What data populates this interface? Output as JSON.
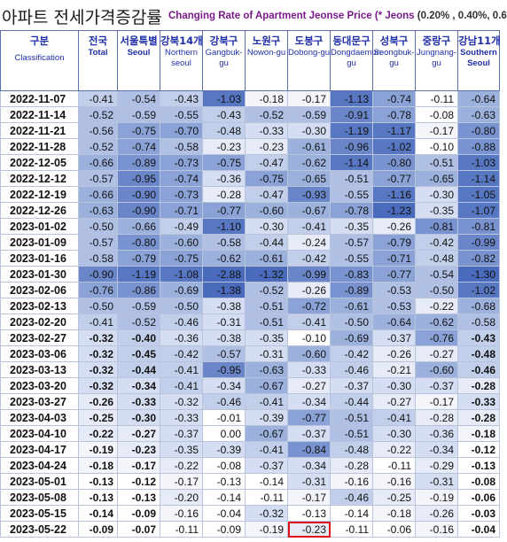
{
  "title": {
    "korean": "아파트 전세가격증감률",
    "english": "Changing Rate of Apartment Jeonse Price",
    "note_prefix": "(* Jeons",
    "note_values": "(0.20% , 0.40%, 0.6"
  },
  "columns": [
    {
      "ko": "구분",
      "en": "Classification"
    },
    {
      "ko": "전국",
      "en": "Total"
    },
    {
      "ko": "서울특별",
      "en": "Seoul"
    },
    {
      "ko": "강북14개",
      "en": "Northern seoul"
    },
    {
      "ko": "강북구",
      "en": "Gangbuk-gu"
    },
    {
      "ko": "노원구",
      "en": "Nowon-gu"
    },
    {
      "ko": "도봉구",
      "en": "Dobong-gu"
    },
    {
      "ko": "동대문구",
      "en": "Dongdaemun-gu"
    },
    {
      "ko": "성북구",
      "en": "Seongbuk-gu"
    },
    {
      "ko": "중랑구",
      "en": "Jungnang-gu"
    },
    {
      "ko": "강남11개",
      "en": "Southern Seoul"
    }
  ],
  "colors": {
    "header_text": "#1f2fa8",
    "title_english": "#7a1a8a",
    "highlight_box": "#e0101a"
  },
  "rows": [
    {
      "date": "2022-11-07",
      "values": [
        "-0.41",
        "-0.54",
        "-0.43",
        "-1.03",
        "-0.18",
        "-0.17",
        "-1.13",
        "-0.74",
        "-0.11",
        "-0.64"
      ]
    },
    {
      "date": "2022-11-14",
      "values": [
        "-0.52",
        "-0.59",
        "-0.55",
        "-0.43",
        "-0.52",
        "-0.59",
        "-0.91",
        "-0.78",
        "-0.08",
        "-0.63"
      ]
    },
    {
      "date": "2022-11-21",
      "values": [
        "-0.56",
        "-0.75",
        "-0.70",
        "-0.48",
        "-0.33",
        "-0.30",
        "-1.19",
        "-1.17",
        "-0.17",
        "-0.80"
      ]
    },
    {
      "date": "2022-11-28",
      "values": [
        "-0.52",
        "-0.74",
        "-0.58",
        "-0.23",
        "-0.23",
        "-0.61",
        "-0.96",
        "-1.02",
        "-0.10",
        "-0.88"
      ]
    },
    {
      "date": "2022-12-05",
      "values": [
        "-0.66",
        "-0.89",
        "-0.73",
        "-0.75",
        "-0.47",
        "-0.62",
        "-1.14",
        "-0.80",
        "-0.51",
        "-1.03"
      ]
    },
    {
      "date": "2022-12-12",
      "values": [
        "-0.57",
        "-0.95",
        "-0.74",
        "-0.36",
        "-0.75",
        "-0.65",
        "-0.51",
        "-0.77",
        "-0.65",
        "-1.14"
      ]
    },
    {
      "date": "2022-12-19",
      "values": [
        "-0.66",
        "-0.90",
        "-0.73",
        "-0.28",
        "-0.47",
        "-0.93",
        "-0.55",
        "-1.16",
        "-0.30",
        "-1.05"
      ]
    },
    {
      "date": "2022-12-26",
      "values": [
        "-0.63",
        "-0.90",
        "-0.71",
        "-0.77",
        "-0.60",
        "-0.67",
        "-0.78",
        "-1.23",
        "-0.35",
        "-1.07"
      ]
    },
    {
      "date": "2023-01-02",
      "values": [
        "-0.50",
        "-0.66",
        "-0.49",
        "-1.10",
        "-0.30",
        "-0.41",
        "-0.35",
        "-0.26",
        "-0.81",
        "-0.81"
      ]
    },
    {
      "date": "2023-01-09",
      "values": [
        "-0.57",
        "-0.80",
        "-0.60",
        "-0.58",
        "-0.44",
        "-0.24",
        "-0.57",
        "-0.79",
        "-0.42",
        "-0.99"
      ]
    },
    {
      "date": "2023-01-16",
      "values": [
        "-0.58",
        "-0.79",
        "-0.75",
        "-0.62",
        "-0.61",
        "-0.42",
        "-0.55",
        "-0.71",
        "-0.48",
        "-0.82"
      ]
    },
    {
      "date": "2023-01-30",
      "values": [
        "-0.90",
        "-1.19",
        "-1.08",
        "-2.88",
        "-1.32",
        "-0.99",
        "-0.83",
        "-0.77",
        "-0.54",
        "-1.30"
      ]
    },
    {
      "date": "2023-02-06",
      "values": [
        "-0.76",
        "-0.86",
        "-0.69",
        "-1.38",
        "-0.52",
        "-0.26",
        "-0.89",
        "-0.53",
        "-0.50",
        "-1.02"
      ]
    },
    {
      "date": "2023-02-13",
      "values": [
        "-0.50",
        "-0.59",
        "-0.50",
        "-0.38",
        "-0.51",
        "-0.72",
        "-0.61",
        "-0.53",
        "-0.22",
        "-0.68"
      ]
    },
    {
      "date": "2023-02-20",
      "values": [
        "-0.41",
        "-0.52",
        "-0.46",
        "-0.31",
        "-0.51",
        "-0.41",
        "-0.50",
        "-0.64",
        "-0.62",
        "-0.58"
      ]
    },
    {
      "date": "2023-02-27",
      "values": [
        "-0.32",
        "-0.40",
        "-0.36",
        "-0.38",
        "-0.35",
        "-0.10",
        "-0.69",
        "-0.37",
        "-0.76",
        "-0.43"
      ]
    },
    {
      "date": "2023-03-06",
      "values": [
        "-0.32",
        "-0.45",
        "-0.42",
        "-0.57",
        "-0.31",
        "-0.60",
        "-0.42",
        "-0.26",
        "-0.27",
        "-0.48"
      ]
    },
    {
      "date": "2023-03-13",
      "values": [
        "-0.32",
        "-0.44",
        "-0.41",
        "-0.95",
        "-0.63",
        "-0.33",
        "-0.46",
        "-0.21",
        "-0.60",
        "-0.46"
      ]
    },
    {
      "date": "2023-03-20",
      "values": [
        "-0.32",
        "-0.34",
        "-0.41",
        "-0.34",
        "-0.67",
        "-0.27",
        "-0.37",
        "-0.30",
        "-0.37",
        "-0.28"
      ]
    },
    {
      "date": "2023-03-27",
      "values": [
        "-0.26",
        "-0.33",
        "-0.32",
        "-0.46",
        "-0.41",
        "-0.34",
        "-0.44",
        "-0.27",
        "-0.17",
        "-0.33"
      ]
    },
    {
      "date": "2023-04-03",
      "values": [
        "-0.25",
        "-0.30",
        "-0.33",
        "-0.01",
        "-0.39",
        "-0.77",
        "-0.51",
        "-0.41",
        "-0.28",
        "-0.28"
      ]
    },
    {
      "date": "2023-04-10",
      "values": [
        "-0.22",
        "-0.27",
        "-0.37",
        "0.00",
        "-0.67",
        "-0.37",
        "-0.51",
        "-0.30",
        "-0.36",
        "-0.18"
      ]
    },
    {
      "date": "2023-04-17",
      "values": [
        "-0.19",
        "-0.23",
        "-0.35",
        "-0.39",
        "-0.41",
        "-0.84",
        "-0.48",
        "-0.22",
        "-0.34",
        "-0.12"
      ]
    },
    {
      "date": "2023-04-24",
      "values": [
        "-0.18",
        "-0.17",
        "-0.22",
        "-0.08",
        "-0.37",
        "-0.34",
        "-0.28",
        "-0.11",
        "-0.29",
        "-0.13"
      ]
    },
    {
      "date": "2023-05-01",
      "values": [
        "-0.13",
        "-0.12",
        "-0.17",
        "-0.13",
        "-0.14",
        "-0.31",
        "-0.16",
        "-0.16",
        "-0.31",
        "-0.08"
      ]
    },
    {
      "date": "2023-05-08",
      "values": [
        "-0.13",
        "-0.13",
        "-0.20",
        "-0.14",
        "-0.11",
        "-0.17",
        "-0.46",
        "-0.25",
        "-0.19",
        "-0.06"
      ]
    },
    {
      "date": "2023-05-15",
      "values": [
        "-0.14",
        "-0.09",
        "-0.16",
        "-0.04",
        "-0.32",
        "-0.13",
        "-0.14",
        "-0.18",
        "-0.26",
        "-0.03"
      ]
    },
    {
      "date": "2023-05-22",
      "values": [
        "-0.09",
        "-0.07",
        "-0.11",
        "-0.09",
        "-0.19",
        "-0.23",
        "-0.11",
        "-0.06",
        "-0.16",
        "-0.04"
      ]
    }
  ],
  "highlighted_cell": {
    "date": "2023-05-22",
    "column": "Dobong-gu",
    "value": "-0.23"
  }
}
